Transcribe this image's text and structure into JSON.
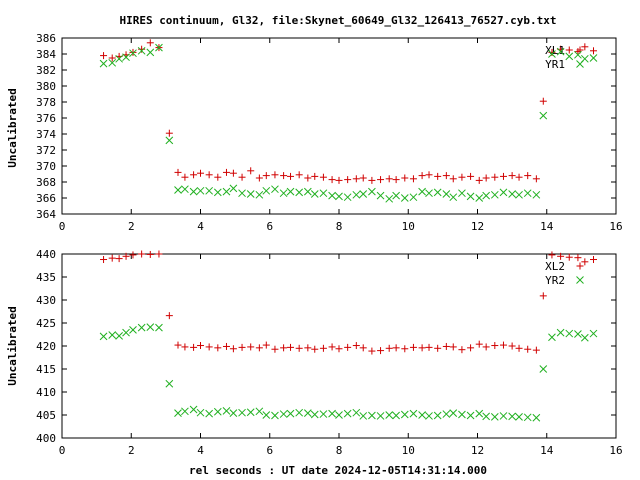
{
  "title": "HIRES continuum, Gl32, file:Skynet_60649_Gl32_126413_76527.cyb.txt",
  "xlabel": "rel seconds : UT date 2024-12-05T14:31:14.000",
  "colors": {
    "red": "#d00000",
    "green": "#20b020",
    "axis": "#000000"
  },
  "chart_data": [
    {
      "type": "scatter",
      "ylabel": "Uncalibrated",
      "xlim": [
        0,
        16
      ],
      "ylim": [
        364,
        386
      ],
      "xticks": [
        0,
        2,
        4,
        6,
        8,
        10,
        12,
        14,
        16
      ],
      "yticks": [
        364,
        366,
        368,
        370,
        372,
        374,
        376,
        378,
        380,
        382,
        384,
        386
      ],
      "legend_position": "top-right",
      "series": [
        {
          "name": "XL1",
          "marker": "plus",
          "color": "#d00000",
          "x": [
            1.2,
            1.45,
            1.65,
            1.85,
            2.05,
            2.3,
            2.55,
            2.8,
            3.1,
            3.35,
            3.55,
            3.8,
            4.0,
            4.25,
            4.5,
            4.75,
            4.95,
            5.2,
            5.45,
            5.7,
            5.9,
            6.15,
            6.4,
            6.6,
            6.85,
            7.1,
            7.3,
            7.55,
            7.8,
            8.0,
            8.25,
            8.5,
            8.7,
            8.95,
            9.2,
            9.45,
            9.65,
            9.9,
            10.15,
            10.4,
            10.6,
            10.85,
            11.1,
            11.3,
            11.55,
            11.8,
            12.05,
            12.25,
            12.5,
            12.75,
            13.0,
            13.2,
            13.45,
            13.7,
            13.9,
            14.15,
            14.4,
            14.65,
            14.9,
            15.1,
            15.35
          ],
          "y": [
            383.8,
            383.5,
            383.7,
            383.9,
            384.2,
            384.6,
            385.4,
            384.8,
            374.1,
            369.2,
            368.6,
            368.9,
            369.1,
            368.9,
            368.6,
            369.2,
            369.1,
            368.6,
            369.4,
            368.5,
            368.8,
            368.9,
            368.8,
            368.7,
            368.9,
            368.5,
            368.7,
            368.6,
            368.3,
            368.2,
            368.3,
            368.4,
            368.5,
            368.2,
            368.3,
            368.4,
            368.3,
            368.5,
            368.4,
            368.8,
            368.9,
            368.7,
            368.8,
            368.4,
            368.6,
            368.7,
            368.2,
            368.5,
            368.6,
            368.7,
            368.8,
            368.6,
            368.8,
            368.4,
            378.1,
            384.2,
            384.6,
            384.5,
            384.3,
            384.9,
            384.4
          ]
        },
        {
          "name": "YR1",
          "marker": "cross",
          "color": "#20b020",
          "x": [
            1.2,
            1.45,
            1.65,
            1.85,
            2.05,
            2.3,
            2.55,
            2.8,
            3.1,
            3.35,
            3.55,
            3.8,
            4.0,
            4.25,
            4.5,
            4.75,
            4.95,
            5.2,
            5.45,
            5.7,
            5.9,
            6.15,
            6.4,
            6.6,
            6.85,
            7.1,
            7.3,
            7.55,
            7.8,
            8.0,
            8.25,
            8.5,
            8.7,
            8.95,
            9.2,
            9.45,
            9.65,
            9.9,
            10.15,
            10.4,
            10.6,
            10.85,
            11.1,
            11.3,
            11.55,
            11.8,
            12.05,
            12.25,
            12.5,
            12.75,
            13.0,
            13.2,
            13.45,
            13.7,
            13.9,
            14.15,
            14.4,
            14.65,
            14.9,
            15.1,
            15.35
          ],
          "y": [
            382.8,
            382.9,
            383.4,
            383.6,
            384.1,
            384.4,
            384.2,
            384.8,
            373.2,
            367.0,
            367.1,
            366.8,
            366.9,
            366.9,
            366.7,
            366.8,
            367.2,
            366.6,
            366.5,
            366.4,
            366.9,
            367.1,
            366.6,
            366.8,
            366.7,
            366.8,
            366.5,
            366.6,
            366.3,
            366.2,
            366.1,
            366.4,
            366.5,
            366.8,
            366.3,
            365.9,
            366.3,
            366.0,
            366.1,
            366.8,
            366.6,
            366.7,
            366.5,
            366.1,
            366.6,
            366.2,
            366.0,
            366.3,
            366.4,
            366.7,
            366.5,
            366.4,
            366.6,
            366.4,
            376.3,
            384.0,
            384.3,
            383.7,
            383.9,
            383.4,
            383.5
          ]
        }
      ]
    },
    {
      "type": "scatter",
      "ylabel": "Uncalibrated",
      "xlim": [
        0,
        16
      ],
      "ylim": [
        400,
        440
      ],
      "xticks": [
        0,
        2,
        4,
        6,
        8,
        10,
        12,
        14,
        16
      ],
      "yticks": [
        400,
        405,
        410,
        415,
        420,
        425,
        430,
        435,
        440
      ],
      "legend_position": "top-right",
      "series": [
        {
          "name": "XL2",
          "marker": "plus",
          "color": "#d00000",
          "x": [
            1.2,
            1.45,
            1.65,
            1.85,
            2.05,
            2.3,
            2.55,
            2.8,
            3.1,
            3.35,
            3.55,
            3.8,
            4.0,
            4.25,
            4.5,
            4.75,
            4.95,
            5.2,
            5.45,
            5.7,
            5.9,
            6.15,
            6.4,
            6.6,
            6.85,
            7.1,
            7.3,
            7.55,
            7.8,
            8.0,
            8.25,
            8.5,
            8.7,
            8.95,
            9.2,
            9.45,
            9.65,
            9.9,
            10.15,
            10.4,
            10.6,
            10.85,
            11.1,
            11.3,
            11.55,
            11.8,
            12.05,
            12.25,
            12.5,
            12.75,
            13.0,
            13.2,
            13.45,
            13.7,
            13.9,
            14.15,
            14.4,
            14.65,
            14.9,
            15.1,
            15.35
          ],
          "y": [
            438.8,
            439.1,
            439.0,
            439.5,
            439.8,
            440.0,
            439.9,
            440.0,
            426.6,
            420.2,
            419.8,
            419.7,
            420.1,
            419.8,
            419.6,
            419.9,
            419.4,
            419.7,
            419.8,
            419.6,
            420.2,
            419.3,
            419.6,
            419.7,
            419.5,
            419.6,
            419.3,
            419.5,
            419.8,
            419.4,
            419.7,
            420.1,
            419.6,
            418.9,
            419.0,
            419.5,
            419.6,
            419.4,
            419.7,
            419.6,
            419.7,
            419.5,
            419.9,
            419.8,
            419.2,
            419.6,
            420.4,
            419.8,
            420.1,
            420.2,
            420.0,
            419.5,
            419.3,
            419.1,
            430.9,
            439.8,
            439.5,
            439.3,
            439.2,
            438.3,
            438.8
          ]
        },
        {
          "name": "YR2",
          "marker": "cross",
          "color": "#20b020",
          "x": [
            1.2,
            1.45,
            1.65,
            1.85,
            2.05,
            2.3,
            2.55,
            2.8,
            3.1,
            3.35,
            3.55,
            3.8,
            4.0,
            4.25,
            4.5,
            4.75,
            4.95,
            5.2,
            5.45,
            5.7,
            5.9,
            6.15,
            6.4,
            6.6,
            6.85,
            7.1,
            7.3,
            7.55,
            7.8,
            8.0,
            8.25,
            8.5,
            8.7,
            8.95,
            9.2,
            9.45,
            9.65,
            9.9,
            10.15,
            10.4,
            10.6,
            10.85,
            11.1,
            11.3,
            11.55,
            11.8,
            12.05,
            12.25,
            12.5,
            12.75,
            13.0,
            13.2,
            13.45,
            13.7,
            13.9,
            14.15,
            14.4,
            14.65,
            14.9,
            15.1,
            15.35
          ],
          "y": [
            422.1,
            422.4,
            422.2,
            422.9,
            423.5,
            424.0,
            424.1,
            424.0,
            411.8,
            405.4,
            405.8,
            406.2,
            405.5,
            405.3,
            405.7,
            405.9,
            405.4,
            405.5,
            405.6,
            405.8,
            405.0,
            404.9,
            405.2,
            405.3,
            405.5,
            405.4,
            405.1,
            405.2,
            405.3,
            405.0,
            405.3,
            405.5,
            404.8,
            404.9,
            404.8,
            405.0,
            404.9,
            405.1,
            405.3,
            405.0,
            404.8,
            404.9,
            405.2,
            405.4,
            405.1,
            404.9,
            405.3,
            404.7,
            404.6,
            404.8,
            404.7,
            404.6,
            404.5,
            404.4,
            415.0,
            421.9,
            422.9,
            422.7,
            422.6,
            421.8,
            422.7
          ]
        }
      ]
    }
  ]
}
